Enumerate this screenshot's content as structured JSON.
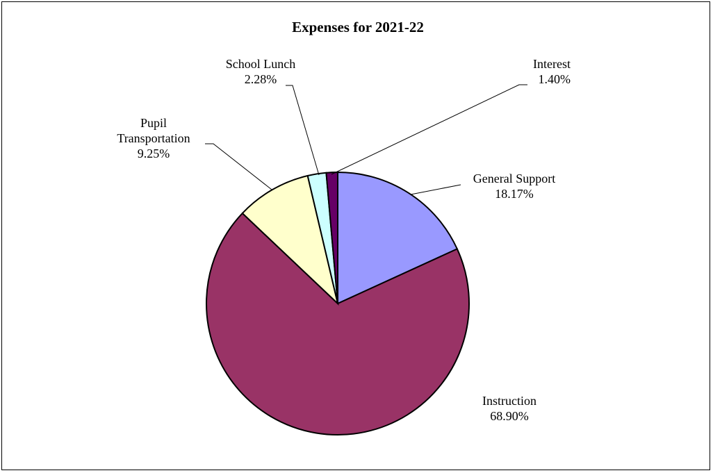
{
  "chart_data": {
    "type": "pie",
    "title": "Expenses for 2021-22",
    "slices": [
      {
        "label": "General Support",
        "value_label": "18.17%",
        "value": 18.17,
        "color": "#9999FF"
      },
      {
        "label": "Instruction",
        "value_label": "68.90%",
        "value": 68.9,
        "color": "#993366"
      },
      {
        "label": "Pupil Transportation",
        "label_lines": [
          "Pupil",
          "Transportation"
        ],
        "value_label": "9.25%",
        "value": 9.25,
        "color": "#FFFFCC"
      },
      {
        "label": "School Lunch",
        "value_label": "2.28%",
        "value": 2.28,
        "color": "#CCFFFF"
      },
      {
        "label": "Interest",
        "value_label": "1.40%",
        "value": 1.4,
        "color": "#660066"
      }
    ],
    "start_angle": "12 o'clock",
    "direction": "clockwise",
    "legend": "none"
  }
}
